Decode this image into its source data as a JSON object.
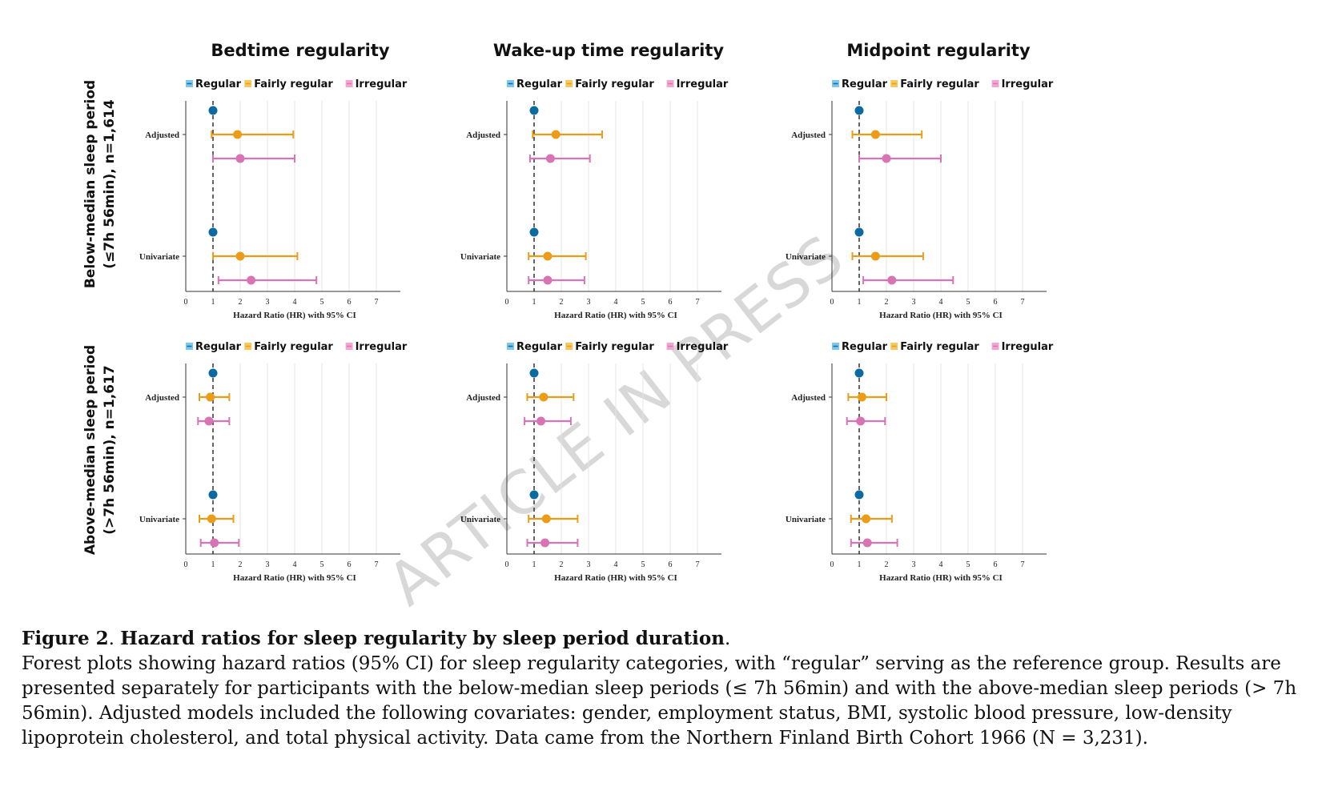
{
  "chart_data": {
    "type": "forest",
    "columns": [
      "Bedtime regularity",
      "Wake-up time regularity",
      "Midpoint regularity"
    ],
    "rows": [
      "Below-median sleep period\n(≤7h 56min), n=1,614",
      "Above-median sleep period\n(>7h 56min), n=1,617"
    ],
    "legend": [
      {
        "name": "Regular",
        "color": "#0b6aa2",
        "swatch": "#7cc7ee"
      },
      {
        "name": "Fairly regular",
        "color": "#eb9c18",
        "swatch": "#f6c860"
      },
      {
        "name": "Irregular",
        "color": "#d874b4",
        "swatch": "#f2a6cf"
      }
    ],
    "categories": [
      "Adjusted",
      "Univariate"
    ],
    "xlabel": "Hazard Ratio (HR) with 95% CI",
    "xticks": [
      "0",
      "1",
      "2",
      "3",
      "4",
      "5",
      "6",
      "7"
    ],
    "xlim": [
      0,
      7
    ],
    "reference_line": 1,
    "panels": [
      {
        "row": 0,
        "col": 0,
        "groups": [
          {
            "category": "Adjusted",
            "series": [
              {
                "name": "Regular",
                "hr": 1.0,
                "lo": null,
                "hi": null
              },
              {
                "name": "Fairly regular",
                "hr": 1.9,
                "lo": 0.95,
                "hi": 3.95
              },
              {
                "name": "Irregular",
                "hr": 2.0,
                "lo": 1.0,
                "hi": 4.0
              }
            ]
          },
          {
            "category": "Univariate",
            "series": [
              {
                "name": "Regular",
                "hr": 1.0,
                "lo": null,
                "hi": null
              },
              {
                "name": "Fairly regular",
                "hr": 2.0,
                "lo": 1.0,
                "hi": 4.1
              },
              {
                "name": "Irregular",
                "hr": 2.4,
                "lo": 1.2,
                "hi": 4.8
              }
            ]
          }
        ]
      },
      {
        "row": 0,
        "col": 1,
        "groups": [
          {
            "category": "Adjusted",
            "series": [
              {
                "name": "Regular",
                "hr": 1.0,
                "lo": null,
                "hi": null
              },
              {
                "name": "Fairly regular",
                "hr": 1.8,
                "lo": 0.95,
                "hi": 3.5
              },
              {
                "name": "Irregular",
                "hr": 1.6,
                "lo": 0.85,
                "hi": 3.05
              }
            ]
          },
          {
            "category": "Univariate",
            "series": [
              {
                "name": "Regular",
                "hr": 1.0,
                "lo": null,
                "hi": null
              },
              {
                "name": "Fairly regular",
                "hr": 1.5,
                "lo": 0.8,
                "hi": 2.9
              },
              {
                "name": "Irregular",
                "hr": 1.5,
                "lo": 0.8,
                "hi": 2.85
              }
            ]
          }
        ]
      },
      {
        "row": 0,
        "col": 2,
        "groups": [
          {
            "category": "Adjusted",
            "series": [
              {
                "name": "Regular",
                "hr": 1.0,
                "lo": null,
                "hi": null
              },
              {
                "name": "Fairly regular",
                "hr": 1.6,
                "lo": 0.75,
                "hi": 3.3
              },
              {
                "name": "Irregular",
                "hr": 2.0,
                "lo": 1.0,
                "hi": 4.0
              }
            ]
          },
          {
            "category": "Univariate",
            "series": [
              {
                "name": "Regular",
                "hr": 1.0,
                "lo": null,
                "hi": null
              },
              {
                "name": "Fairly regular",
                "hr": 1.6,
                "lo": 0.75,
                "hi": 3.35
              },
              {
                "name": "Irregular",
                "hr": 2.2,
                "lo": 1.15,
                "hi": 4.45
              }
            ]
          }
        ]
      },
      {
        "row": 1,
        "col": 0,
        "groups": [
          {
            "category": "Adjusted",
            "series": [
              {
                "name": "Regular",
                "hr": 1.0,
                "lo": null,
                "hi": null
              },
              {
                "name": "Fairly regular",
                "hr": 0.9,
                "lo": 0.5,
                "hi": 1.6
              },
              {
                "name": "Irregular",
                "hr": 0.85,
                "lo": 0.45,
                "hi": 1.6
              }
            ]
          },
          {
            "category": "Univariate",
            "series": [
              {
                "name": "Regular",
                "hr": 1.0,
                "lo": null,
                "hi": null
              },
              {
                "name": "Fairly regular",
                "hr": 0.95,
                "lo": 0.5,
                "hi": 1.75
              },
              {
                "name": "Irregular",
                "hr": 1.05,
                "lo": 0.55,
                "hi": 1.95
              }
            ]
          }
        ]
      },
      {
        "row": 1,
        "col": 1,
        "groups": [
          {
            "category": "Adjusted",
            "series": [
              {
                "name": "Regular",
                "hr": 1.0,
                "lo": null,
                "hi": null
              },
              {
                "name": "Fairly regular",
                "hr": 1.35,
                "lo": 0.75,
                "hi": 2.45
              },
              {
                "name": "Irregular",
                "hr": 1.25,
                "lo": 0.65,
                "hi": 2.35
              }
            ]
          },
          {
            "category": "Univariate",
            "series": [
              {
                "name": "Regular",
                "hr": 1.0,
                "lo": null,
                "hi": null
              },
              {
                "name": "Fairly regular",
                "hr": 1.45,
                "lo": 0.8,
                "hi": 2.6
              },
              {
                "name": "Irregular",
                "hr": 1.4,
                "lo": 0.75,
                "hi": 2.6
              }
            ]
          }
        ]
      },
      {
        "row": 1,
        "col": 2,
        "groups": [
          {
            "category": "Adjusted",
            "series": [
              {
                "name": "Regular",
                "hr": 1.0,
                "lo": null,
                "hi": null
              },
              {
                "name": "Fairly regular",
                "hr": 1.1,
                "lo": 0.6,
                "hi": 2.0
              },
              {
                "name": "Irregular",
                "hr": 1.05,
                "lo": 0.55,
                "hi": 1.95
              }
            ]
          },
          {
            "category": "Univariate",
            "series": [
              {
                "name": "Regular",
                "hr": 1.0,
                "lo": null,
                "hi": null
              },
              {
                "name": "Fairly regular",
                "hr": 1.25,
                "lo": 0.7,
                "hi": 2.2
              },
              {
                "name": "Irregular",
                "hr": 1.3,
                "lo": 0.7,
                "hi": 2.4
              }
            ]
          }
        ]
      }
    ]
  },
  "watermark": "ARTICLE IN PRESS",
  "caption": {
    "title_label": "Figure 2",
    "title_sep": ". ",
    "title": "Hazard ratios for sleep regularity by sleep period duration",
    "title_end": ".",
    "body": "Forest plots showing hazard ratios (95% CI) for sleep regularity categories, with “regular” serving as the reference group. Results are presented separately for participants with the below-median sleep periods (≤ 7h 56min) and with the above-median sleep periods (> 7h 56min). Adjusted models included the following covariates: gender, employment status, BMI, systolic blood pressure, low-density lipoprotein cholesterol, and total physical activity. Data came from the Northern Finland Birth Cohort 1966 (N = 3,231)."
  }
}
